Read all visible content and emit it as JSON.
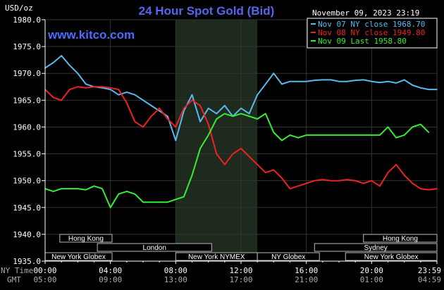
{
  "chart_data": {
    "type": "line",
    "title": "24 Hour Spot Gold (Bid)",
    "site": "www.kitco.com",
    "date_label": "November 09, 2023 23:19",
    "y_unit": "USD/oz",
    "ylim": [
      1935,
      1980
    ],
    "y_ticks": [
      "1980.0",
      "1975.0",
      "1970.0",
      "1965.0",
      "1960.0",
      "1955.0",
      "1950.0",
      "1945.0",
      "1940.0",
      "1935.0"
    ],
    "y_tick_values": [
      1980,
      1975,
      1970,
      1965,
      1960,
      1955,
      1950,
      1945,
      1940,
      1935
    ],
    "x_range_hours": [
      0,
      24
    ],
    "x_ticks_ny": [
      "00:00",
      "04:00",
      "08:00",
      "12:00",
      "16:00",
      "20:00",
      "23:59"
    ],
    "x_ticks_gmt": [
      "05:00",
      "09:00",
      "13:00",
      "17:00",
      "21:00",
      "01:00",
      "04:59"
    ],
    "x_tick_hours": [
      0,
      4,
      8,
      12,
      16,
      20,
      24
    ],
    "ny_time_label": "NY Time",
    "gmt_label": "GMT",
    "shaded_ny_session_hours": [
      8,
      13
    ],
    "legend_placement": "top-right",
    "series": [
      {
        "name": "Nov 07 NY close 1968.70",
        "color": "#55bbee",
        "x": [
          0,
          0.5,
          1,
          1.5,
          2,
          2.5,
          3,
          3.5,
          4,
          4.5,
          5,
          5.5,
          6,
          6.5,
          7,
          7.5,
          8,
          8.5,
          9,
          9.5,
          10,
          10.5,
          11,
          11.5,
          12,
          12.5,
          13,
          13.5,
          14,
          14.5,
          15,
          15.5,
          16,
          16.5,
          17,
          17.5,
          18,
          18.5,
          19,
          19.5,
          20,
          20.5,
          21,
          21.5,
          22,
          22.5,
          23,
          23.5,
          24
        ],
        "values": [
          1971.0,
          1972.0,
          1973.3,
          1971.5,
          1970.0,
          1968.0,
          1967.5,
          1967.3,
          1967.0,
          1966.0,
          1966.5,
          1966.0,
          1965.0,
          1964.0,
          1963.0,
          1962.0,
          1957.5,
          1963.0,
          1966.0,
          1961.0,
          1963.5,
          1962.5,
          1964.0,
          1962.0,
          1963.5,
          1962.5,
          1966.0,
          1968.0,
          1970.0,
          1968.0,
          1968.5,
          1968.5,
          1968.5,
          1968.7,
          1968.8,
          1968.8,
          1968.5,
          1968.5,
          1968.7,
          1968.8,
          1968.5,
          1968.3,
          1968.5,
          1968.2,
          1968.8,
          1967.8,
          1967.3,
          1967.0,
          1967.0
        ]
      },
      {
        "name": "Nov 08 NY close 1949.80",
        "color": "#ee2222",
        "x": [
          0,
          0.5,
          1,
          1.5,
          2,
          2.5,
          3,
          3.5,
          4,
          4.5,
          5,
          5.5,
          6,
          6.5,
          7,
          7.5,
          8,
          8.5,
          9,
          9.5,
          10,
          10.5,
          11,
          11.5,
          12,
          12.5,
          13,
          13.5,
          14,
          14.5,
          15,
          15.5,
          16,
          16.5,
          17,
          17.5,
          18,
          18.5,
          19,
          19.5,
          20,
          20.5,
          21,
          21.5,
          22,
          22.5,
          23,
          23.5,
          24
        ],
        "values": [
          1967.0,
          1965.5,
          1965.0,
          1967.0,
          1967.5,
          1967.3,
          1967.5,
          1967.5,
          1967.3,
          1967.0,
          1964.5,
          1961.0,
          1960.0,
          1962.0,
          1963.5,
          1961.5,
          1960.0,
          1963.5,
          1965.0,
          1964.0,
          1960.5,
          1955.0,
          1953.0,
          1955.0,
          1956.0,
          1954.5,
          1953.0,
          1951.5,
          1952.0,
          1950.5,
          1948.5,
          1949.0,
          1949.5,
          1950.0,
          1950.2,
          1950.0,
          1950.0,
          1950.2,
          1950.0,
          1949.5,
          1950.0,
          1949.0,
          1951.5,
          1953.0,
          1951.0,
          1949.5,
          1948.5,
          1948.3,
          1948.5
        ]
      },
      {
        "name": "Nov 09 Last 1958.80",
        "color": "#33ee33",
        "x": [
          0,
          0.5,
          1,
          1.5,
          2,
          2.5,
          3,
          3.5,
          4,
          4.5,
          5,
          5.5,
          6,
          6.5,
          7,
          7.5,
          8,
          8.5,
          9,
          9.5,
          10,
          10.5,
          11,
          11.5,
          12,
          12.5,
          13,
          13.5,
          14,
          14.5,
          15,
          15.5,
          16,
          16.5,
          17,
          17.5,
          18,
          18.5,
          19,
          19.5,
          20,
          20.5,
          21,
          21.5,
          22,
          22.5,
          23,
          23.5
        ],
        "values": [
          1948.5,
          1948.0,
          1948.5,
          1948.5,
          1948.5,
          1948.3,
          1949.0,
          1948.5,
          1945.0,
          1947.5,
          1948.0,
          1947.5,
          1946.0,
          1946.0,
          1946.0,
          1946.0,
          1946.5,
          1947.0,
          1951.0,
          1956.0,
          1958.5,
          1961.5,
          1962.5,
          1962.0,
          1962.5,
          1962.0,
          1961.5,
          1962.5,
          1959.0,
          1957.5,
          1958.5,
          1958.0,
          1958.5,
          1958.5,
          1958.5,
          1958.5,
          1958.5,
          1958.5,
          1958.5,
          1958.5,
          1958.5,
          1958.5,
          1960.0,
          1958.0,
          1958.5,
          1960.0,
          1960.5,
          1959.0
        ]
      }
    ],
    "sessions": [
      {
        "label": "Hong Kong",
        "row": 0,
        "start": 0.9,
        "end": 4.1
      },
      {
        "label": "London",
        "row": 1,
        "start": 3.2,
        "end": 10.2
      },
      {
        "label": "New York Globex",
        "row": 2,
        "start": 0.0,
        "end": 4.1
      },
      {
        "label": "New York NYMEX",
        "row": 2,
        "start": 8.0,
        "end": 13.0
      },
      {
        "label": "NY Globex",
        "row": 2,
        "start": 13.0,
        "end": 16.8
      },
      {
        "label": "Hong Kong",
        "row": 0,
        "start": 19.5,
        "end": 24.0
      },
      {
        "label": "Sydney",
        "row": 1,
        "start": 16.5,
        "end": 24.0
      },
      {
        "label": "New York Globex",
        "row": 2,
        "start": 18.4,
        "end": 24.0
      }
    ]
  }
}
